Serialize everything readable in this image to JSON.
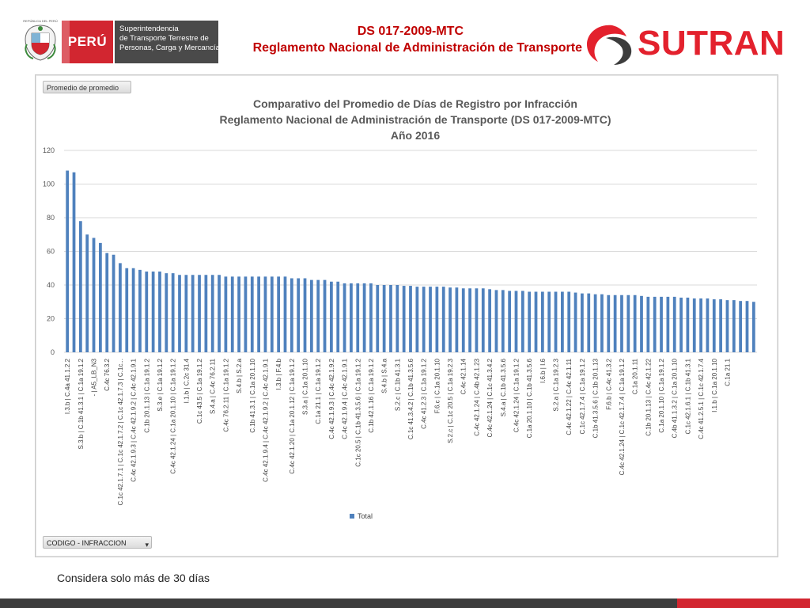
{
  "header": {
    "gov_repub_text": "REPÚBLICA DEL PERÚ",
    "gov_country": "PERÚ",
    "gov_entity_lines": [
      "Superintendencia",
      "de Transporte Terrestre de",
      "Personas, Carga y Mercancías"
    ],
    "doc_code": "DS 017-2009-MTC",
    "doc_name": "Reglamento Nacional de Administración de Transporte",
    "brand": "SUTRAN"
  },
  "pivot": {
    "values_button": "Promedio de promedio",
    "axis_field": "CODIGO - INFRACCION"
  },
  "footnote": "Considera solo más de 30 días",
  "colors": {
    "bar": "#4f81bd",
    "brand_red": "#e3212d",
    "title_red": "#c00000"
  },
  "chart_data": {
    "type": "bar",
    "title_lines": [
      "Comparativo del Promedio de Días de Registro por Infracción",
      "Reglamento Nacional de Administración de Transporte (DS 017-2009-MTC)",
      "Año 2016"
    ],
    "ylim": [
      0,
      120
    ],
    "yticks": [
      0,
      20,
      40,
      60,
      80,
      100,
      120
    ],
    "grid": true,
    "legend_position": "bottom",
    "series": [
      {
        "name": "Total",
        "values": [
          108,
          107,
          78,
          70,
          68,
          65,
          59,
          58,
          53,
          50,
          50,
          49,
          48,
          48,
          48,
          47,
          47,
          46,
          46,
          46,
          46,
          46,
          46,
          46,
          45,
          45,
          45,
          45,
          45,
          45,
          45,
          45,
          45,
          45,
          44,
          44,
          44,
          43,
          43,
          43,
          42,
          42,
          41,
          41,
          41,
          41,
          41,
          40,
          40,
          40,
          40,
          39.5,
          39.5,
          39,
          39,
          39,
          39,
          39,
          38.5,
          38.5,
          38,
          38,
          38,
          38,
          37.5,
          37,
          37,
          36.5,
          36.5,
          36.5,
          36,
          36,
          36,
          36,
          36,
          36,
          36,
          35.5,
          35,
          35,
          34.5,
          34.5,
          34,
          34,
          34,
          34,
          34,
          33.5,
          33,
          33,
          33,
          33,
          33,
          32.5,
          32.5,
          32,
          32,
          32,
          31.5,
          31.5,
          31,
          31,
          30.5,
          30.5,
          30
        ]
      }
    ],
    "visible_tick_labels": [
      "I.3.b | C.4a 41.1.2.2",
      "S.3.b | C.1b 41.3.1 | C.1a 19.1.2",
      "- | A5_LB_N3",
      "C.4c 76.3.2",
      "C.1c 42.1.7.1 | C.1c 42.1.7.2 | C.1c 42.1.7.3 | C.1c...",
      "C.4c 42.1.9.3 | C.4c 42.1.9.2 | C.4c 42.1.9.1",
      "C.1b 20.1.13 | C.1a 19.1.2",
      "S.3.e | C.1a 19.1.2",
      "C.4c 42.1.24 | C.1a 20.1.10 | C.1a 19.1.2",
      "I.1.b | C.2c 31.4",
      "C.1c 43.5 | C.1a 19.1.2",
      "S.4.a | C.4c 76.2.11",
      "C.4c 76.2.11 | C.1a 19.1.2",
      "S.4.b | S.2.a",
      "C.1b 41.3.1 | C.1a 20.1.10",
      "C.4c 42.1.9.4 | C.4c 42.1.9.2 | C.4c 42.1.9.1",
      "I.3.b | F.4.b",
      "C.4c 42.1.20 | C.1a 20.1.12 | C.1a 19.1.2",
      "S.3.a | C.1a 20.1.10",
      "C.1a 21.1 | C.1a 19.1.2",
      "C.4c 42.1.9.3 | C.4c 42.1.9.2",
      "C.4c 42.1.9.4 | C.4c 42.1.9.1",
      "C.1c 20.5 | C.1b 41.3.5.6 | C.1a 19.1.2",
      "C.1b 42.1.16 | C.1a 19.1.2",
      "S.4.b | S.4.a",
      "S.2.c | C.1b 41.3.1",
      "C.1c 41.3.4.2 | C.1b 41.3.5.6",
      "C.4c 41.2.3 | C.1a 19.1.2",
      "F.6.c | C.1a 20.1.10",
      "S.2.c | C.1c 20.5 | C.1a 19.2.3",
      "C.4c 42.1.14",
      "C.4c 42.1.24 | C.4b 42.1.23",
      "C.4c 42.1.24 | C.1c 41.3.4.2",
      "S.4.a | C.1b 41.3.5.6",
      "C.4c 42.1.24 | C.1a 19.1.2",
      "C.1a 20.1.10 | C.1b 41.3.5.6",
      "I.6.b | I.6",
      "S.2.a | C.1a 19.2.3",
      "C.4c 42.1.22 | C.4c 42.1.11",
      "C.1c 42.1.7.4 | C.1a 19.1.2",
      "C.1b 41.3.5.6 | C.1b 20.1.13",
      "F.6.b | C.4c 41.3.2",
      "C.4c 42.1.24 | C.1c 42.1.7.4 | C.1a 19.1.2",
      "C.1a 20.1.11",
      "C.1b 20.1.13 | C.4c 42.1.22",
      "C.1a 20.1.10 | C.1a 19.1.2",
      "C.4b 41.1.3.2 | C.1a 20.1.10",
      "C.1c 42.1.6.1 | C.1b 41.3.1",
      "C.4c 41.2.5.1 | C.1c 42.1.7.4",
      "I.1.b | C.1a 20.1.10",
      "C.1a 21.1"
    ],
    "xlabel": "",
    "ylabel": ""
  }
}
